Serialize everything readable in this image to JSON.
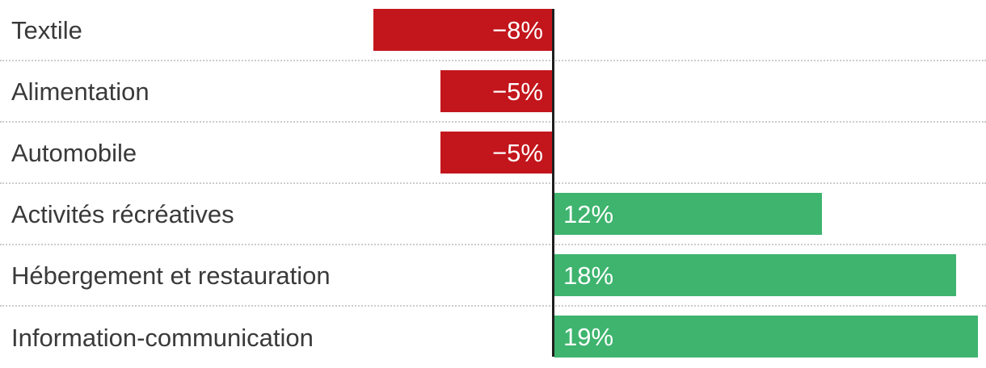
{
  "chart_data": {
    "type": "bar",
    "orientation": "horizontal-diverging",
    "title": "",
    "xlabel": "",
    "ylabel": "",
    "unit": "%",
    "legend": "none",
    "grid": "dotted-row-separators",
    "xlim": [
      -8,
      19.5
    ],
    "categories": [
      "Textile",
      "Alimentation",
      "Automobile",
      "Activités récréatives",
      "Hébergement et restauration",
      "Information-communication"
    ],
    "values": [
      -8,
      -5,
      -5,
      12,
      18,
      19
    ],
    "value_labels": [
      "−8%",
      "−5%",
      "−5%",
      "12%",
      "18%",
      "19%"
    ],
    "colors": {
      "negative": "#c3161c",
      "positive": "#3eb46e",
      "zero_line": "#1f1f1f",
      "label_text": "#3a3a3a",
      "value_text": "#ffffff",
      "separator": "#cccccc"
    }
  }
}
